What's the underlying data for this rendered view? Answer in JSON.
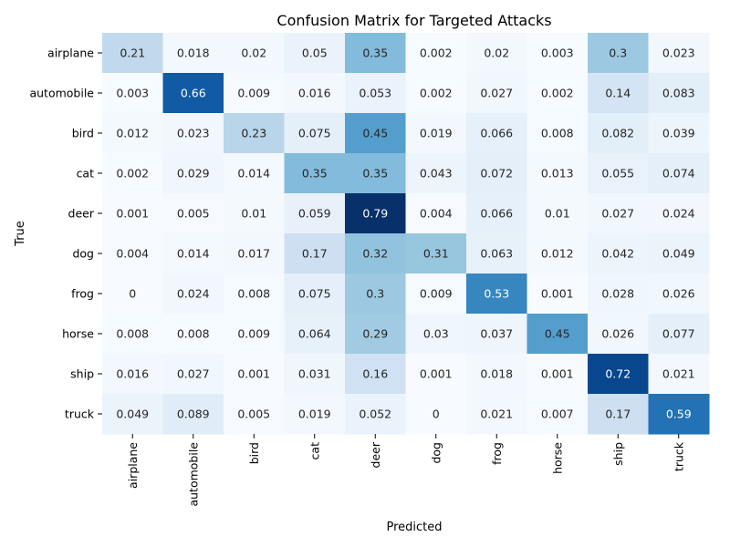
{
  "chart_data": {
    "type": "heatmap",
    "title": "Confusion Matrix for Targeted Attacks",
    "xlabel": "Predicted",
    "ylabel": "True",
    "x_categories": [
      "airplane",
      "automobile",
      "bird",
      "cat",
      "deer",
      "dog",
      "frog",
      "horse",
      "ship",
      "truck"
    ],
    "y_categories": [
      "airplane",
      "automobile",
      "bird",
      "cat",
      "deer",
      "dog",
      "frog",
      "horse",
      "ship",
      "truck"
    ],
    "values": [
      [
        0.21,
        0.018,
        0.02,
        0.05,
        0.35,
        0.002,
        0.02,
        0.003,
        0.3,
        0.023
      ],
      [
        0.003,
        0.66,
        0.009,
        0.016,
        0.053,
        0.002,
        0.027,
        0.002,
        0.14,
        0.083
      ],
      [
        0.012,
        0.023,
        0.23,
        0.075,
        0.45,
        0.019,
        0.066,
        0.008,
        0.082,
        0.039
      ],
      [
        0.002,
        0.029,
        0.014,
        0.35,
        0.35,
        0.043,
        0.072,
        0.013,
        0.055,
        0.074
      ],
      [
        0.001,
        0.005,
        0.01,
        0.059,
        0.79,
        0.004,
        0.066,
        0.01,
        0.027,
        0.024
      ],
      [
        0.004,
        0.014,
        0.017,
        0.17,
        0.32,
        0.31,
        0.063,
        0.012,
        0.042,
        0.049
      ],
      [
        0,
        0.024,
        0.008,
        0.075,
        0.3,
        0.009,
        0.53,
        0.001,
        0.028,
        0.026
      ],
      [
        0.008,
        0.008,
        0.009,
        0.064,
        0.29,
        0.03,
        0.037,
        0.45,
        0.026,
        0.077
      ],
      [
        0.016,
        0.027,
        0.001,
        0.031,
        0.16,
        0.001,
        0.018,
        0.001,
        0.72,
        0.021
      ],
      [
        0.049,
        0.089,
        0.005,
        0.019,
        0.052,
        0,
        0.021,
        0.007,
        0.17,
        0.59
      ]
    ],
    "colormap": "Blues",
    "vmin": 0,
    "vmax": 0.79,
    "colorbar": false,
    "grid": false
  }
}
